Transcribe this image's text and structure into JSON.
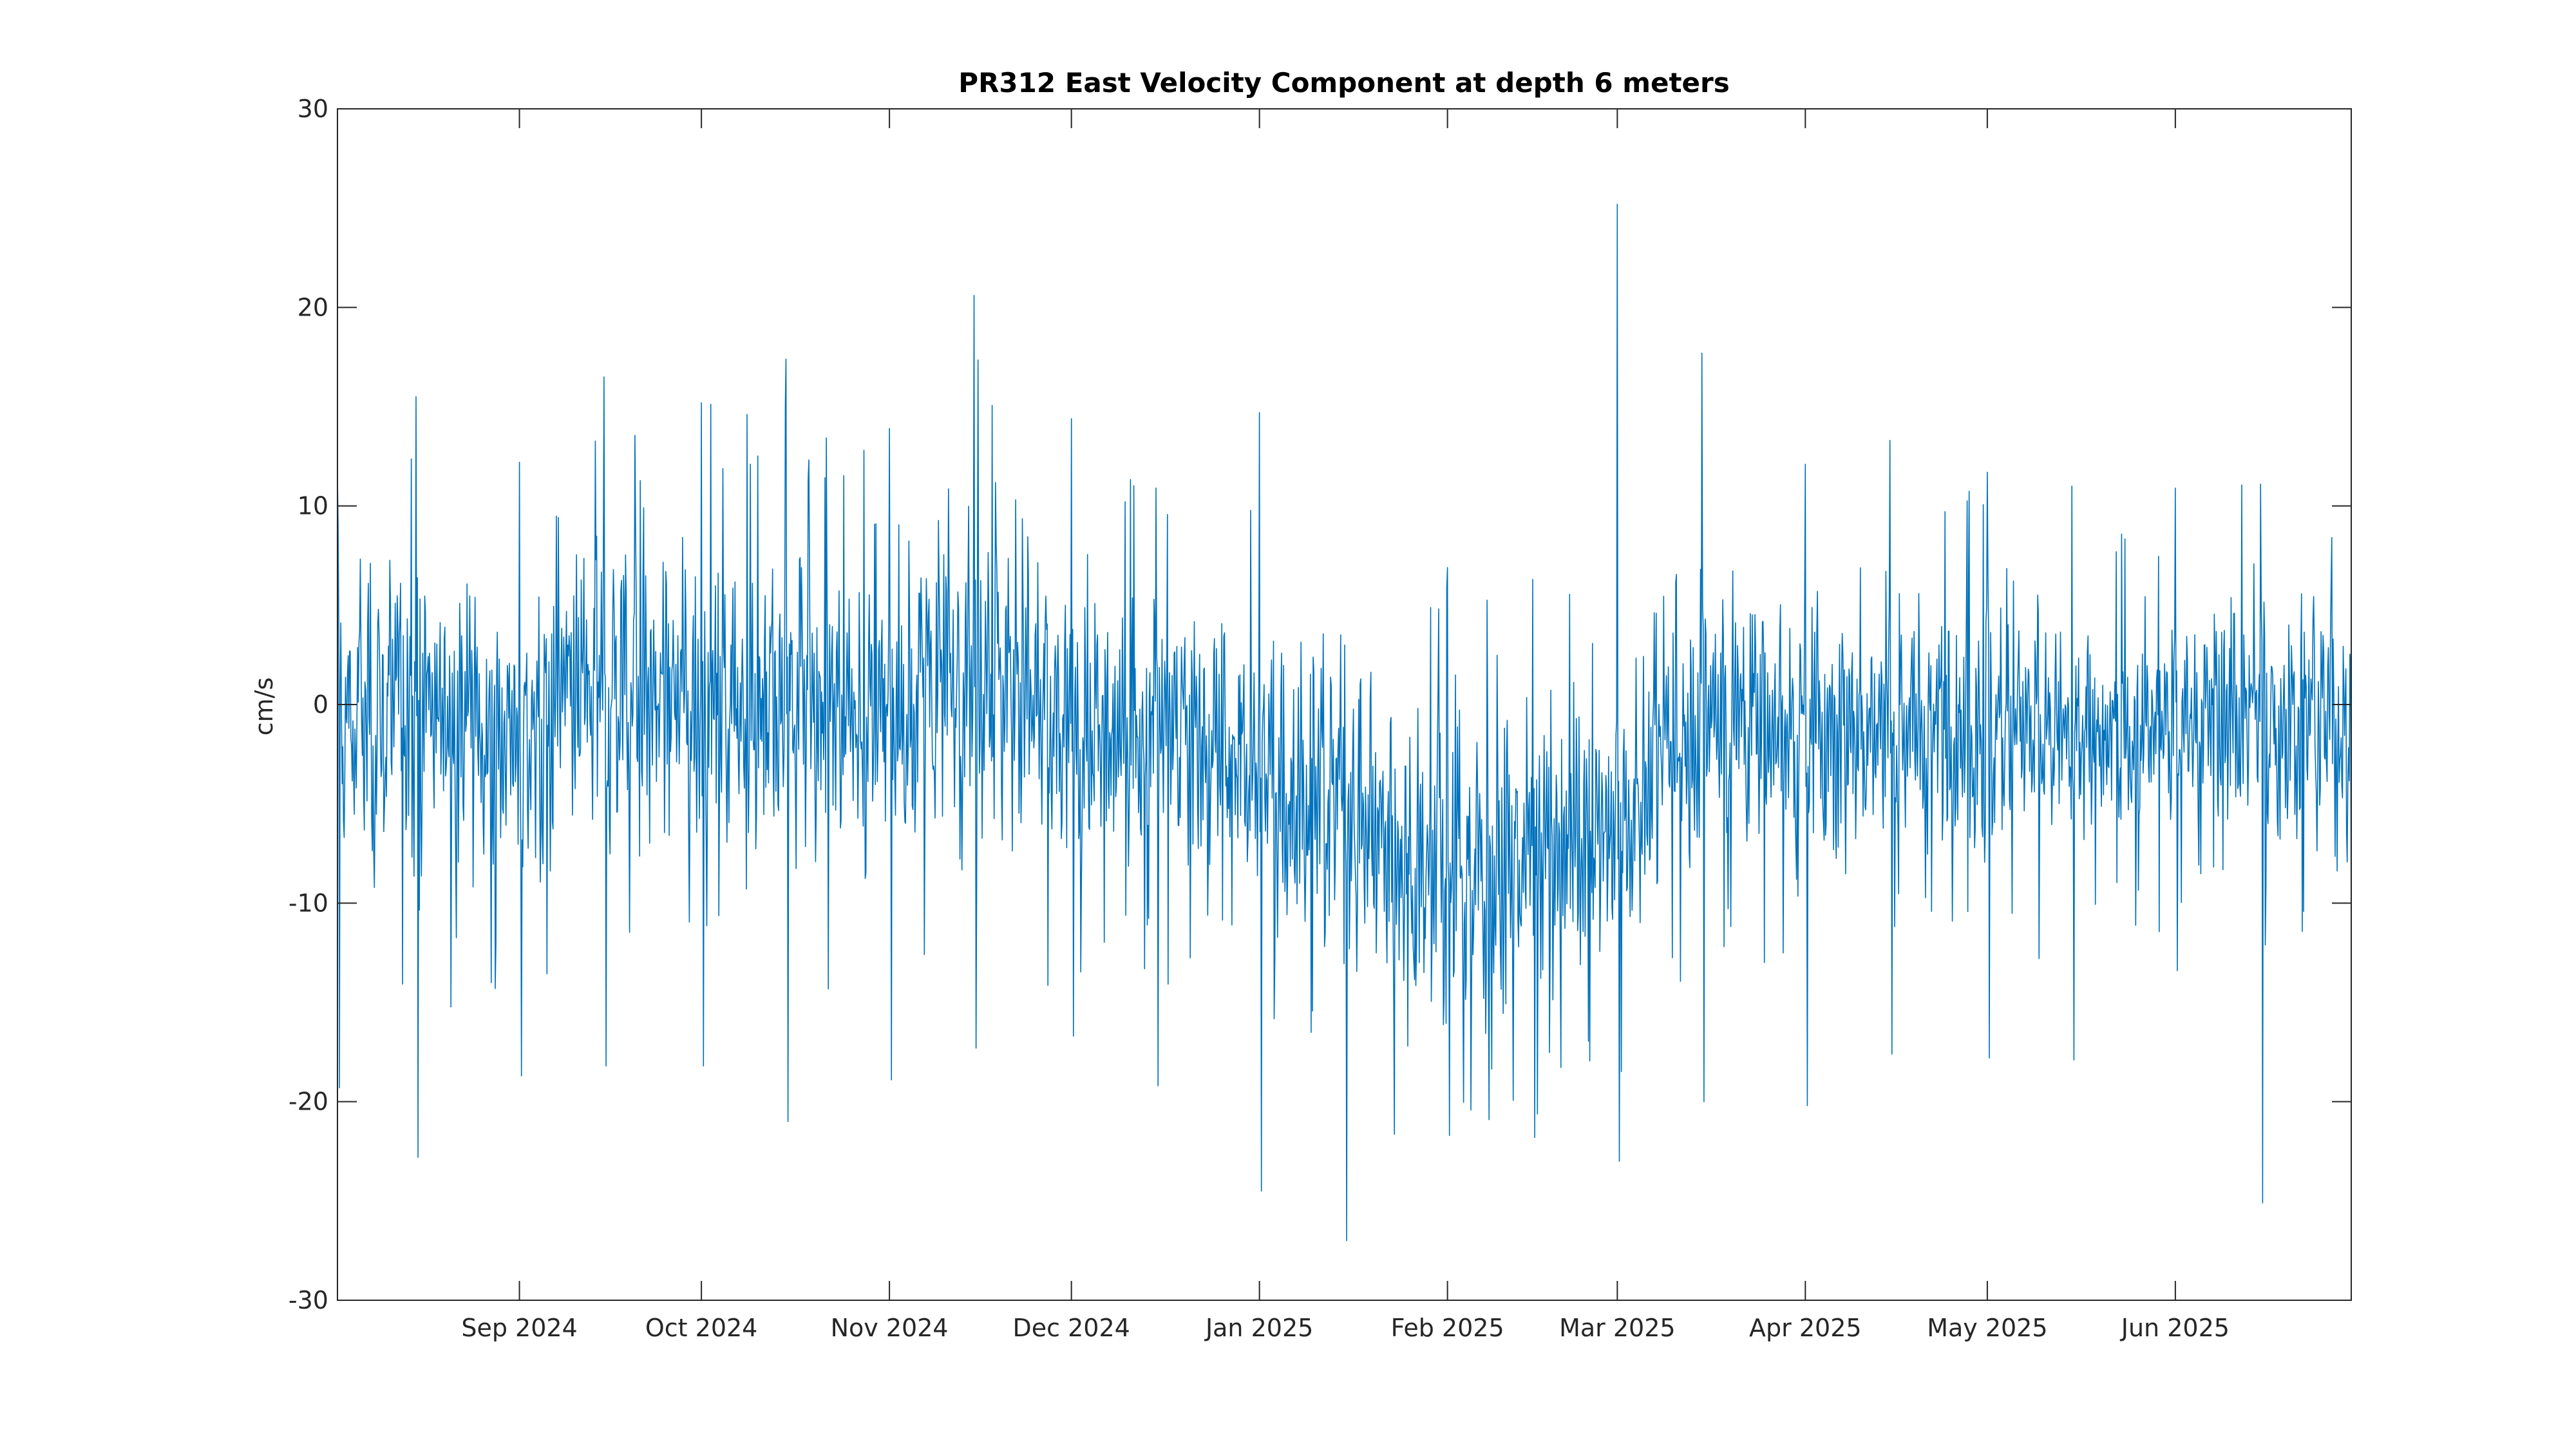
{
  "chart_data": {
    "type": "line",
    "title": "PR312 East Velocity Component at depth 6 meters",
    "xlabel": "",
    "ylabel": "cm/s",
    "xlim": [
      "2024-08-02",
      "2025-06-30"
    ],
    "ylim": [
      -30,
      30
    ],
    "y_ticks": [
      30,
      20,
      10,
      0,
      -10,
      -20,
      -30
    ],
    "y_tick_labels": [
      "30",
      "20",
      "10",
      "0",
      "-10",
      "-20",
      "-30"
    ],
    "x_ticks": [
      "2024-09-01",
      "2024-10-01",
      "2024-11-01",
      "2024-12-01",
      "2025-01-01",
      "2025-02-01",
      "2025-03-01",
      "2025-04-01",
      "2025-05-01",
      "2025-06-01"
    ],
    "x_tick_labels": [
      "Sep 2024",
      "Oct 2024",
      "Nov 2024",
      "Dec 2024",
      "Jan 2025",
      "Feb 2025",
      "Mar 2025",
      "Apr 2025",
      "May 2025",
      "Jun 2025"
    ],
    "grid": false,
    "line_color": "#0072BD",
    "axis_color": "#262626",
    "series": [
      {
        "sampling": "hourly",
        "x": [
          "2024-08-02",
          "2024-08-15",
          "2024-09-01",
          "2024-09-15",
          "2024-10-01",
          "2024-10-15",
          "2024-11-01",
          "2024-11-15",
          "2024-12-01",
          "2024-12-15",
          "2025-01-01",
          "2025-01-15",
          "2025-02-01",
          "2025-02-15",
          "2025-03-01",
          "2025-03-15",
          "2025-04-01",
          "2025-04-15",
          "2025-05-01",
          "2025-05-15",
          "2025-06-01",
          "2025-06-15",
          "2025-06-30"
        ],
        "center": [
          -1,
          0,
          -2,
          1,
          0,
          0,
          -1,
          3,
          -2,
          -1,
          -3,
          -5,
          -9,
          -8,
          -6,
          0,
          -1,
          -1,
          -1,
          -2,
          -1,
          0,
          -1
        ],
        "spread": [
          6,
          6,
          5,
          6,
          6,
          6,
          5,
          6,
          5,
          5,
          5,
          6,
          6,
          5,
          5,
          5,
          5,
          4,
          5,
          4,
          4,
          5,
          5
        ],
        "max": [
          11.5,
          15.5,
          12.2,
          16.5,
          15.2,
          17.4,
          13.9,
          20.6,
          14.4,
          10.9,
          14.7,
          3,
          6.9,
          6.3,
          25.2,
          17.7,
          12.1,
          13.3,
          11.7,
          11,
          10.9,
          11.1,
          10.8
        ],
        "min": [
          -19.3,
          -22.8,
          -18.7,
          -18.2,
          -18.2,
          -21,
          -18.9,
          -17.3,
          -16.7,
          -19.2,
          -24.5,
          -27,
          -21.7,
          -21.8,
          -23,
          -20,
          -20.2,
          -17.6,
          -17.8,
          -17.9,
          -13.4,
          -25.1,
          -13
        ]
      }
    ]
  }
}
